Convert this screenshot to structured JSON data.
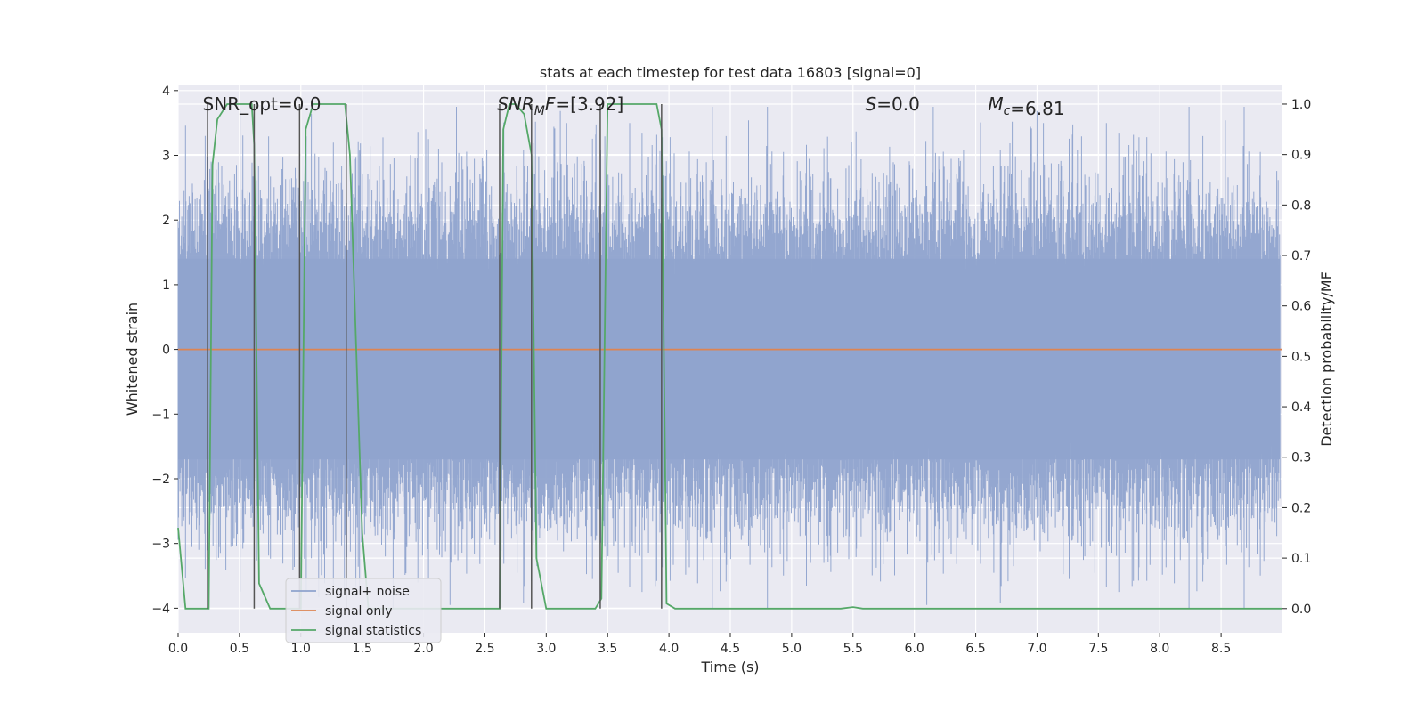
{
  "chart_data": {
    "type": "line",
    "title": "stats at each timestep for test data 16803 [signal=0]",
    "xlabel": "Time (s)",
    "ylabel": "Whitened strain",
    "y2label": "Detection probability/MF",
    "xlim": [
      0.0,
      9.0
    ],
    "ylim": [
      -4.38,
      4.08
    ],
    "y2lim": [
      -0.048,
      1.037
    ],
    "xticks": [
      "0.0",
      "0.5",
      "1.0",
      "1.5",
      "2.0",
      "2.5",
      "3.0",
      "3.5",
      "4.0",
      "4.5",
      "5.0",
      "5.5",
      "6.0",
      "6.5",
      "7.0",
      "7.5",
      "8.0",
      "8.5"
    ],
    "yticks": [
      "4",
      "3",
      "2",
      "1",
      "0",
      "−1",
      "−2",
      "−3",
      "−4"
    ],
    "y2ticks": [
      "1.0",
      "0.9",
      "0.8",
      "0.7",
      "0.6",
      "0.5",
      "0.4",
      "0.3",
      "0.2",
      "0.1",
      "0.0"
    ],
    "grid": true,
    "legend_position": "lower-left",
    "annotations": [
      {
        "label": "SNR_opt=0.0",
        "x": 0.2
      },
      {
        "label_var": "SNR",
        "label_sub": "M",
        "label_var2": "F",
        "label_rest": "=[3.92]",
        "x": 2.6
      },
      {
        "label_var": "S",
        "label_rest": "=0.0",
        "x": 5.6
      },
      {
        "label_var": "M",
        "label_sub": "c",
        "label_rest": "=6.81",
        "x": 6.6
      }
    ],
    "series": [
      {
        "name": "signal+ noise",
        "color": "#8fa3cd",
        "kind": "noise",
        "core_band": [
          -1.7,
          1.4
        ],
        "typical_extremes": [
          -3.5,
          3.7
        ]
      },
      {
        "name": "signal only",
        "color": "#dd8452",
        "kind": "line",
        "x": [
          0.0,
          9.0
        ],
        "values": [
          0.0,
          0.0
        ]
      },
      {
        "name": "signal statistics",
        "color": "#55a868",
        "kind": "line",
        "axis": "right",
        "x": [
          0.0,
          0.06,
          0.12,
          0.25,
          0.28,
          0.32,
          0.4,
          0.6,
          0.62,
          0.66,
          0.75,
          0.95,
          1.0,
          1.04,
          1.1,
          1.36,
          1.4,
          1.5,
          1.55,
          2.62,
          2.65,
          2.7,
          2.75,
          2.82,
          2.88,
          2.92,
          3.0,
          3.2,
          3.4,
          3.45,
          3.5,
          3.9,
          3.94,
          3.98,
          4.05,
          4.5,
          5.4,
          5.5,
          5.58,
          6.0,
          9.0
        ],
        "values": [
          0.16,
          0.0,
          0.0,
          0.0,
          0.88,
          0.97,
          1.0,
          1.0,
          0.92,
          0.05,
          0.0,
          0.0,
          0.0,
          0.95,
          1.0,
          1.0,
          0.9,
          0.15,
          0.0,
          0.0,
          0.95,
          1.0,
          1.0,
          0.98,
          0.9,
          0.1,
          0.0,
          0.0,
          0.0,
          0.02,
          1.0,
          1.0,
          0.95,
          0.01,
          0.0,
          0.0,
          0.0,
          0.003,
          0.0,
          0.0,
          0.0
        ]
      }
    ],
    "vlines": [
      0.24,
      0.62,
      0.99,
      1.37,
      2.62,
      2.88,
      3.44,
      3.94
    ]
  }
}
